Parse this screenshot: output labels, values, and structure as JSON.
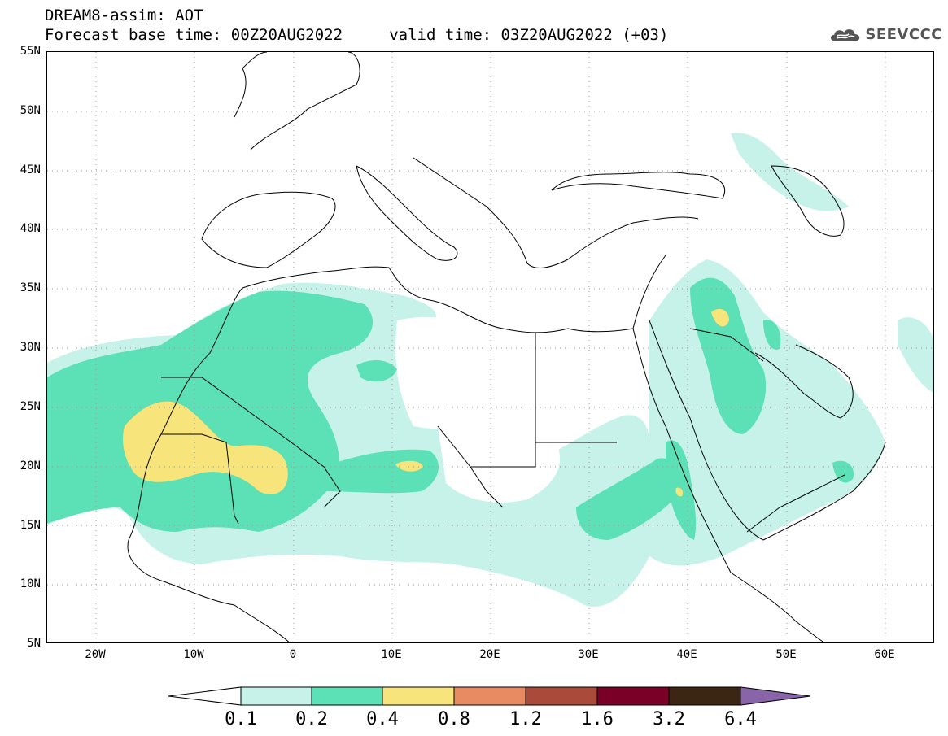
{
  "title": {
    "line1": "DREAM8-assim: AOT",
    "line2": "Forecast base time: 00Z20AUG2022     valid time: 03Z20AUG2022 (+03)"
  },
  "logo": {
    "text": "SEEVCCC",
    "icon": "cloud-icon"
  },
  "map": {
    "lon_range": [
      -25,
      65
    ],
    "lat_range": [
      5,
      55
    ],
    "lat_labels": [
      "55N",
      "50N",
      "45N",
      "40N",
      "35N",
      "30N",
      "25N",
      "20N",
      "15N",
      "10N",
      "5N"
    ],
    "lon_labels": [
      "20W",
      "10W",
      "0",
      "10E",
      "20E",
      "30E",
      "40E",
      "50E",
      "60E"
    ],
    "grid": "dotted"
  },
  "colorbar": {
    "labels": [
      "0.1",
      "0.2",
      "0.4",
      "0.8",
      "1.2",
      "1.6",
      "3.2",
      "6.4"
    ],
    "colors": [
      "#ffffff",
      "#c6f2ea",
      "#5ce0b6",
      "#f7e47a",
      "#e88a62",
      "#aa4a3a",
      "#7a0028",
      "#3a2612",
      "#8a64a8"
    ]
  },
  "legend_colors": {
    "level_01": "#c6f2ea",
    "level_02": "#5ce0b6",
    "level_04": "#f7e47a"
  }
}
